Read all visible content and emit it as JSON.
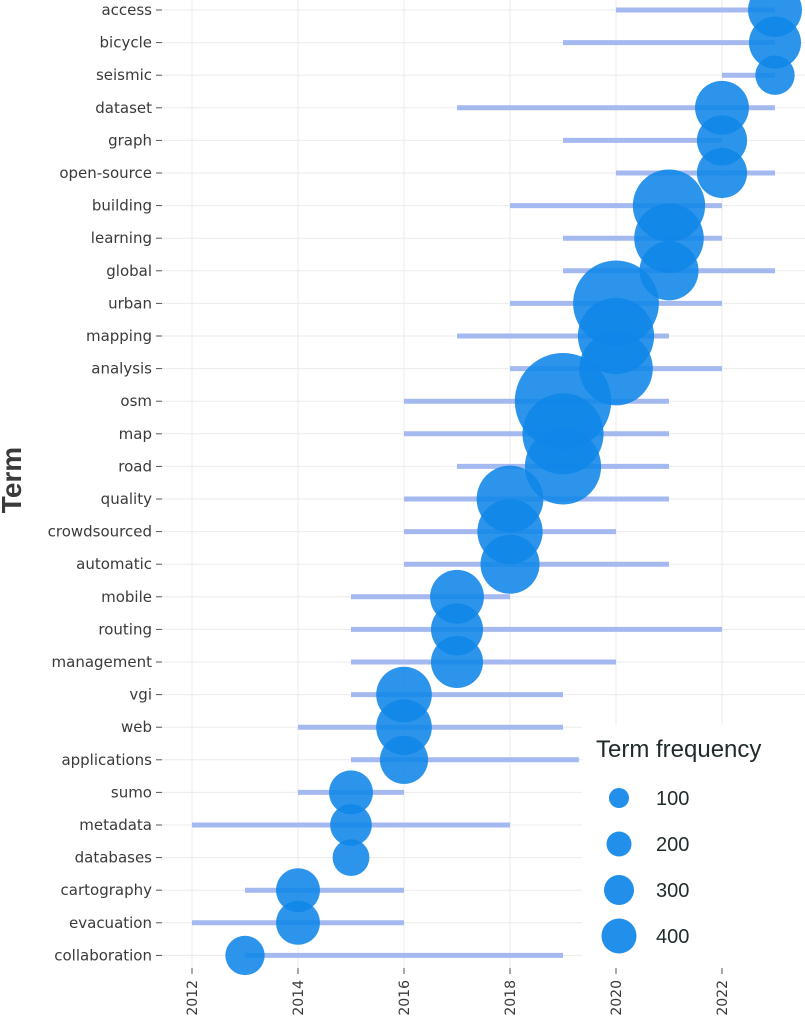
{
  "chart_data": {
    "type": "scatter",
    "title": "",
    "xlabel": "",
    "ylabel": "Term",
    "xlim": [
      2011.5,
      2023.6
    ],
    "x_ticks": [
      "2012",
      "2014",
      "2016",
      "2018",
      "2020",
      "2022"
    ],
    "series": [
      {
        "term": "access",
        "start": 2020,
        "end": 2023,
        "median": 2023,
        "freq": 150
      },
      {
        "term": "bicycle",
        "start": 2019,
        "end": 2023,
        "median": 2023,
        "freq": 140
      },
      {
        "term": "seismic",
        "start": 2022,
        "end": 2023,
        "median": 2023,
        "freq": 80
      },
      {
        "term": "dataset",
        "start": 2017,
        "end": 2023,
        "median": 2022,
        "freq": 150
      },
      {
        "term": "graph",
        "start": 2019,
        "end": 2022,
        "median": 2022,
        "freq": 130
      },
      {
        "term": "open-source",
        "start": 2020,
        "end": 2023,
        "median": 2022,
        "freq": 130
      },
      {
        "term": "building",
        "start": 2018,
        "end": 2022,
        "median": 2021,
        "freq": 270
      },
      {
        "term": "learning",
        "start": 2019,
        "end": 2022,
        "median": 2021,
        "freq": 250
      },
      {
        "term": "global",
        "start": 2019,
        "end": 2023,
        "median": 2021,
        "freq": 180
      },
      {
        "term": "urban",
        "start": 2018,
        "end": 2022,
        "median": 2020,
        "freq": 380
      },
      {
        "term": "mapping",
        "start": 2017,
        "end": 2021,
        "median": 2020,
        "freq": 300
      },
      {
        "term": "analysis",
        "start": 2018,
        "end": 2022,
        "median": 2020,
        "freq": 280
      },
      {
        "term": "osm",
        "start": 2016,
        "end": 2021,
        "median": 2019,
        "freq": 480
      },
      {
        "term": "map",
        "start": 2016,
        "end": 2021,
        "median": 2019,
        "freq": 340
      },
      {
        "term": "road",
        "start": 2017,
        "end": 2021,
        "median": 2019,
        "freq": 300
      },
      {
        "term": "quality",
        "start": 2016,
        "end": 2021,
        "median": 2018,
        "freq": 230
      },
      {
        "term": "crowdsourced",
        "start": 2016,
        "end": 2020,
        "median": 2018,
        "freq": 220
      },
      {
        "term": "automatic",
        "start": 2016,
        "end": 2021,
        "median": 2018,
        "freq": 180
      },
      {
        "term": "mobile",
        "start": 2015,
        "end": 2018,
        "median": 2017,
        "freq": 150
      },
      {
        "term": "routing",
        "start": 2015,
        "end": 2022,
        "median": 2017,
        "freq": 140
      },
      {
        "term": "management",
        "start": 2015,
        "end": 2020,
        "median": 2017,
        "freq": 140
      },
      {
        "term": "vgi",
        "start": 2015,
        "end": 2019,
        "median": 2016,
        "freq": 160
      },
      {
        "term": "web",
        "start": 2014,
        "end": 2019,
        "median": 2016,
        "freq": 160
      },
      {
        "term": "applications",
        "start": 2015,
        "end": 2019.3,
        "median": 2016,
        "freq": 120
      },
      {
        "term": "sumo",
        "start": 2014,
        "end": 2016,
        "median": 2015,
        "freq": 100
      },
      {
        "term": "metadata",
        "start": 2012,
        "end": 2018,
        "median": 2015,
        "freq": 90
      },
      {
        "term": "databases",
        "start": 2015,
        "end": 2015,
        "median": 2015,
        "freq": 70
      },
      {
        "term": "cartography",
        "start": 2013,
        "end": 2016,
        "median": 2014,
        "freq": 100
      },
      {
        "term": "evacuation",
        "start": 2012,
        "end": 2016,
        "median": 2014,
        "freq": 100
      },
      {
        "term": "collaboration",
        "start": 2013,
        "end": 2019,
        "median": 2013,
        "freq": 80
      }
    ],
    "legend": {
      "title": "Term frequency",
      "position": "bottom-right",
      "entries": [
        {
          "label": "100",
          "value": 100
        },
        {
          "label": "200",
          "value": 200
        },
        {
          "label": "300",
          "value": 300
        },
        {
          "label": "400",
          "value": 400
        }
      ]
    },
    "colors": {
      "bar": "#a4b9f0",
      "point": "#0f86e8",
      "grid": "#ebebeb",
      "text": "#3a3a3a"
    }
  }
}
